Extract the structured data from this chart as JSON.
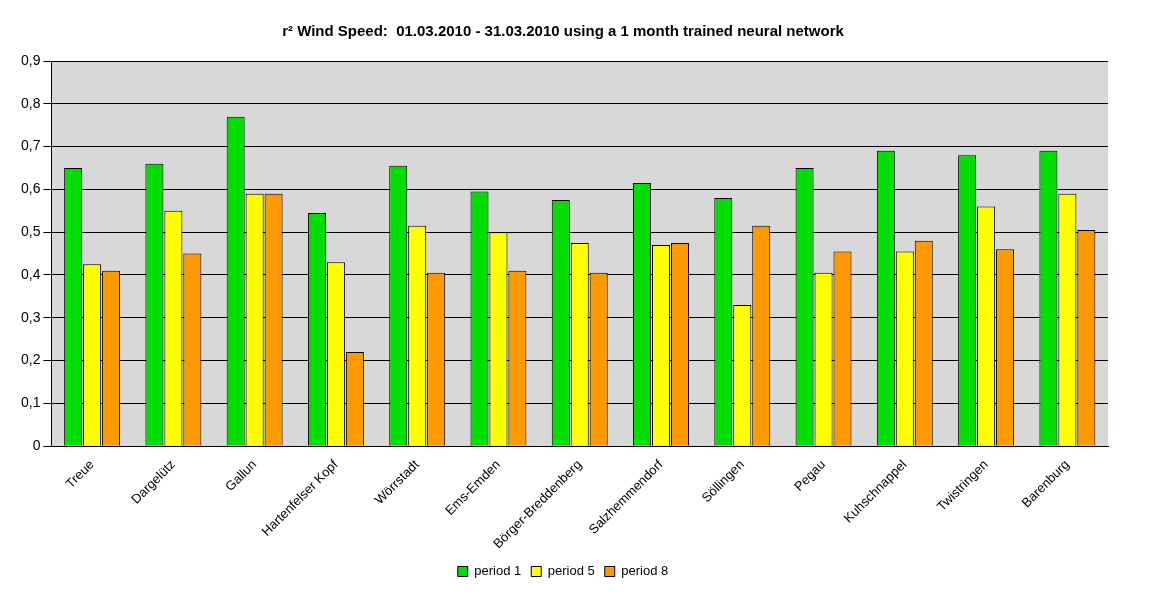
{
  "chart_data": {
    "type": "bar",
    "title": "r² Wind Speed:  01.03.2010 - 31.03.2010 using a 1 month trained neural network",
    "categories": [
      "Treue",
      "Dargelütz",
      "Gallun",
      "Hartenfelser Kopf",
      "Wörrstadt",
      "Ems-Emden",
      "Börger-Breddenberg",
      "Salzhemmendorf",
      "Söllingen",
      "Pegau",
      "Kuhschnappel",
      "Twistringen",
      "Barenburg"
    ],
    "series": [
      {
        "name": "period 1",
        "color": "#00dd00",
        "values": [
          0.65,
          0.66,
          0.77,
          0.545,
          0.655,
          0.595,
          0.575,
          0.615,
          0.58,
          0.65,
          0.69,
          0.68,
          0.69
        ]
      },
      {
        "name": "period 5",
        "color": "#ffff00",
        "values": [
          0.425,
          0.55,
          0.59,
          0.43,
          0.515,
          0.5,
          0.475,
          0.47,
          0.33,
          0.405,
          0.455,
          0.56,
          0.59
        ]
      },
      {
        "name": "period 8",
        "color": "#ff9900",
        "values": [
          0.41,
          0.45,
          0.59,
          0.22,
          0.405,
          0.41,
          0.405,
          0.475,
          0.515,
          0.455,
          0.48,
          0.46,
          0.505
        ]
      }
    ],
    "ylim": [
      0,
      0.9
    ],
    "yticks": [
      0,
      {
        "value": 0.1,
        "label": "0,1"
      },
      {
        "value": 0.2,
        "label": "0,2"
      },
      {
        "value": 0.3,
        "label": "0,3"
      },
      {
        "value": 0.4,
        "label": "0,4"
      },
      {
        "value": 0.5,
        "label": "0,5"
      },
      {
        "value": 0.6,
        "label": "0,6"
      },
      {
        "value": 0.7,
        "label": "0,7"
      },
      {
        "value": 0.8,
        "label": "0,8"
      },
      {
        "value": 0.9,
        "label": "0,9"
      }
    ],
    "grid": "y",
    "legend": "bottom"
  }
}
